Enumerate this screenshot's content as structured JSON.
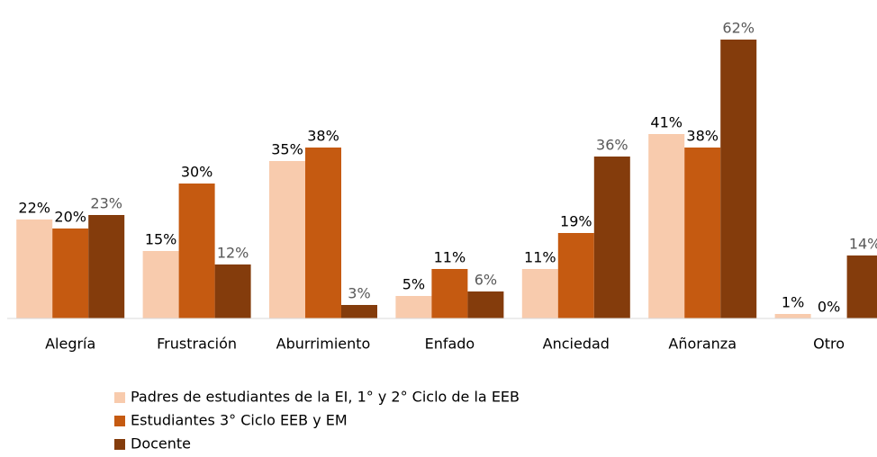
{
  "chart_data": {
    "type": "bar",
    "categories": [
      "Alegría",
      "Frustración",
      "Aburrimiento",
      "Enfado",
      "Anciedad",
      "Añoranza",
      "Otro"
    ],
    "series": [
      {
        "name": "Padres de estudiantes de la EI,  1° y 2° Ciclo de la EEB",
        "color": "#F8CBAD",
        "label_color": "#000000",
        "values": [
          22,
          15,
          35,
          5,
          11,
          41,
          1
        ],
        "value_labels": [
          "22%",
          "15%",
          "35%",
          "5%",
          "11%",
          "41%",
          "1%"
        ]
      },
      {
        "name": "Estudiantes 3° Ciclo EEB y EM",
        "color": "#C55A11",
        "label_color": "#000000",
        "values": [
          20,
          30,
          38,
          11,
          19,
          38,
          0
        ],
        "value_labels": [
          "20%",
          "30%",
          "38%",
          "11%",
          "19%",
          "38%",
          "0%"
        ]
      },
      {
        "name": "Docente",
        "color": "#843C0C",
        "label_color": "#595959",
        "values": [
          23,
          12,
          3,
          6,
          36,
          62,
          14
        ],
        "value_labels": [
          "23%",
          "12%",
          "3%",
          "6%",
          "36%",
          "62%",
          "14%"
        ]
      }
    ],
    "legend": "bottom-left"
  }
}
